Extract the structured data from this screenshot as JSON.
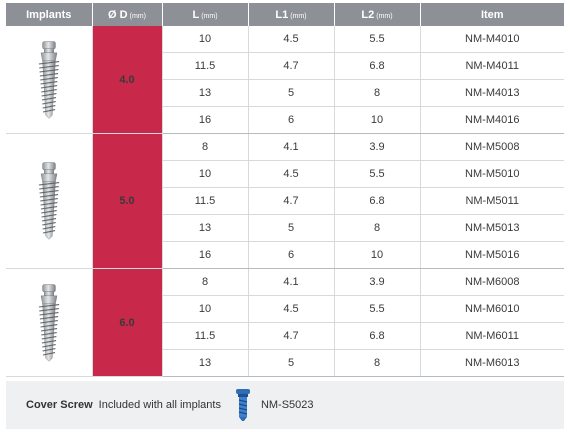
{
  "columns": [
    {
      "label": "Implants",
      "unit": ""
    },
    {
      "label": "Ø D",
      "unit": "(mm)"
    },
    {
      "label": "L",
      "unit": "(mm)"
    },
    {
      "label": "L1",
      "unit": "(mm)"
    },
    {
      "label": "L2",
      "unit": "(mm)"
    },
    {
      "label": "Item",
      "unit": ""
    }
  ],
  "groups": [
    {
      "diameter": "4.0",
      "implant_icon": "dental-implant-icon",
      "rows": [
        {
          "L": "10",
          "L1": "4.5",
          "L2": "5.5",
          "item": "NM-M4010"
        },
        {
          "L": "11.5",
          "L1": "4.7",
          "L2": "6.8",
          "item": "NM-M4011"
        },
        {
          "L": "13",
          "L1": "5",
          "L2": "8",
          "item": "NM-M4013"
        },
        {
          "L": "16",
          "L1": "6",
          "L2": "10",
          "item": "NM-M4016"
        }
      ]
    },
    {
      "diameter": "5.0",
      "implant_icon": "dental-implant-icon",
      "rows": [
        {
          "L": "8",
          "L1": "4.1",
          "L2": "3.9",
          "item": "NM-M5008"
        },
        {
          "L": "10",
          "L1": "4.5",
          "L2": "5.5",
          "item": "NM-M5010"
        },
        {
          "L": "11.5",
          "L1": "4.7",
          "L2": "6.8",
          "item": "NM-M5011"
        },
        {
          "L": "13",
          "L1": "5",
          "L2": "8",
          "item": "NM-M5013"
        },
        {
          "L": "16",
          "L1": "6",
          "L2": "10",
          "item": "NM-M5016"
        }
      ]
    },
    {
      "diameter": "6.0",
      "implant_icon": "dental-implant-icon",
      "rows": [
        {
          "L": "8",
          "L1": "4.1",
          "L2": "3.9",
          "item": "NM-M6008"
        },
        {
          "L": "10",
          "L1": "4.5",
          "L2": "5.5",
          "item": "NM-M6010"
        },
        {
          "L": "11.5",
          "L1": "4.7",
          "L2": "6.8",
          "item": "NM-M6011"
        },
        {
          "L": "13",
          "L1": "5",
          "L2": "8",
          "item": "NM-M6013"
        }
      ]
    }
  ],
  "footer": {
    "label": "Cover Screw",
    "note": "Included with all implants",
    "icon": "cover-screw-icon",
    "item": "NM-S5023"
  },
  "colors": {
    "header_bg": "#8d9197",
    "diameter_bg": "#c8284a",
    "footer_bg": "#eef0f1",
    "screw_blue": "#2f6db5"
  }
}
